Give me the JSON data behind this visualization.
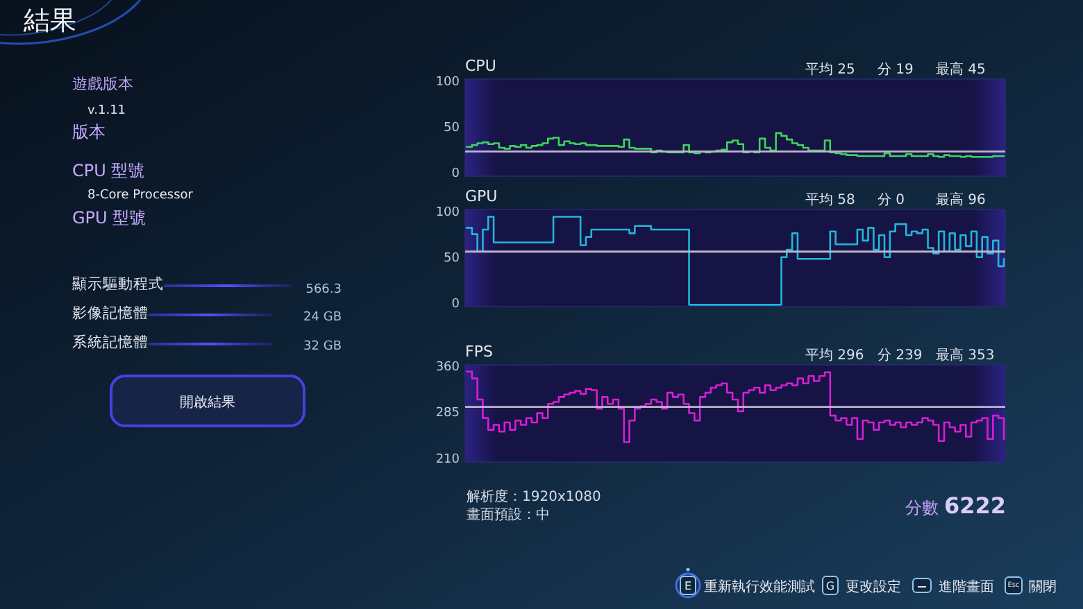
{
  "chart_data": [
    {
      "type": "other",
      "title": "結果",
      "annotations": [
        "遊戲版本",
        "v.1.11",
        "版本",
        "CPU 型號",
        "8-Core Processor",
        "GPU 型號",
        "顯示驅動程式",
        "566.3",
        "影像記憶體",
        "24 GB",
        "系統記憶體",
        "32 GB",
        "開啟結果"
      ]
    },
    {
      "type": "step",
      "title": "CPU",
      "annotations": [
        "平均 25",
        "分 19",
        "最高 45"
      ],
      "tick_labels": "y",
      "categories": [
        null,
        null,
        null,
        null,
        null,
        null,
        null,
        null,
        null,
        null,
        null,
        null,
        null,
        null,
        null,
        null,
        null,
        null,
        null,
        null,
        null,
        null,
        null,
        null,
        null,
        null,
        null,
        null,
        null,
        null,
        null,
        null,
        null,
        null,
        null,
        null,
        null,
        null,
        null,
        null,
        null,
        null,
        null,
        null,
        null,
        null,
        null,
        null,
        null,
        null,
        null,
        null,
        null,
        null,
        null,
        null,
        null,
        null,
        null,
        null,
        null,
        null,
        null,
        null,
        null,
        null,
        null,
        null,
        null,
        null,
        null,
        null,
        null,
        null,
        null,
        null,
        null,
        null,
        null,
        null,
        null,
        null,
        null,
        null,
        null,
        null,
        null,
        null,
        null,
        null,
        null,
        null,
        null,
        null,
        null,
        null,
        null,
        null,
        null,
        null
      ],
      "series": [
        {
          "color": "#3bd65a",
          "values": [
            30,
            32,
            34,
            35,
            33,
            34,
            29,
            28,
            31,
            30,
            32,
            29,
            31,
            32,
            34,
            39,
            40,
            32,
            36,
            34,
            33,
            34,
            32,
            32,
            31,
            31,
            31,
            31,
            30,
            38,
            29,
            28,
            28,
            28,
            24,
            26,
            25,
            24,
            24,
            24,
            32,
            24,
            23,
            25,
            24,
            25,
            26,
            27,
            35,
            37,
            33,
            24,
            25,
            24,
            39,
            29,
            26,
            45,
            42,
            38,
            34,
            32,
            29,
            26,
            26,
            26,
            37,
            24,
            23,
            22,
            21,
            21,
            20,
            20,
            20,
            20,
            20,
            23,
            20,
            20,
            20,
            22,
            20,
            20,
            20,
            22,
            20,
            19,
            21,
            20,
            20,
            19,
            20,
            19,
            19,
            19,
            19,
            20,
            20,
            20
          ]
        }
      ],
      "ylim": [
        -2,
        104
      ],
      "yticks": [
        0,
        50,
        100
      ],
      "ref_lines": [
        {
          "axis": "y",
          "value": 25,
          "color": "#bcb5cc"
        }
      ]
    },
    {
      "type": "step",
      "title": "GPU",
      "annotations": [
        "平均 58",
        "分 0",
        "最高 96"
      ],
      "tick_labels": "y",
      "categories": [
        null,
        null,
        null,
        null,
        null,
        null,
        null,
        null,
        null,
        null,
        null,
        null,
        null,
        null,
        null,
        null,
        null,
        null,
        null,
        null,
        null,
        null,
        null,
        null,
        null,
        null,
        null,
        null,
        null,
        null,
        null,
        null,
        null,
        null,
        null,
        null,
        null,
        null,
        null,
        null,
        null,
        null,
        null,
        null,
        null,
        null,
        null,
        null,
        null,
        null,
        null,
        null,
        null,
        null,
        null,
        null,
        null,
        null,
        null,
        null,
        null,
        null,
        null,
        null,
        null,
        null,
        null,
        null,
        null,
        null,
        null,
        null,
        null,
        null,
        null,
        null,
        null,
        null,
        null,
        null,
        null,
        null,
        null,
        null,
        null,
        null,
        null,
        null,
        null,
        null,
        null,
        null,
        null,
        null,
        null,
        null,
        null,
        null,
        null,
        null
      ],
      "series": [
        {
          "color": "#22b7d8",
          "values": [
            84,
            77,
            58,
            82,
            96,
            68,
            68,
            68,
            68,
            68,
            68,
            68,
            68,
            68,
            68,
            68,
            96,
            96,
            96,
            96,
            96,
            65,
            74,
            82,
            82,
            82,
            82,
            82,
            82,
            82,
            78,
            86,
            86,
            86,
            82,
            82,
            82,
            82,
            82,
            82,
            82,
            0,
            0,
            0,
            0,
            0,
            0,
            0,
            0,
            0,
            0,
            0,
            0,
            0,
            0,
            0,
            0,
            0,
            52,
            60,
            78,
            50,
            50,
            50,
            50,
            50,
            50,
            80,
            66,
            66,
            66,
            66,
            82,
            70,
            84,
            60,
            76,
            52,
            80,
            88,
            88,
            76,
            80,
            78,
            82,
            62,
            56,
            80,
            58,
            78,
            60,
            76,
            64,
            80,
            52,
            74,
            56,
            70,
            42,
            50
          ]
        }
      ],
      "ylim": [
        -2,
        104
      ],
      "yticks": [
        0,
        50,
        100
      ],
      "ref_lines": [
        {
          "axis": "y",
          "value": 58,
          "color": "#bcb5cc"
        }
      ]
    },
    {
      "type": "step",
      "title": "FPS",
      "annotations": [
        "平均 296",
        "分 239",
        "最高 353"
      ],
      "tick_labels": "y",
      "categories": [
        null,
        null,
        null,
        null,
        null,
        null,
        null,
        null,
        null,
        null,
        null,
        null,
        null,
        null,
        null,
        null,
        null,
        null,
        null,
        null,
        null,
        null,
        null,
        null,
        null,
        null,
        null,
        null,
        null,
        null,
        null,
        null,
        null,
        null,
        null,
        null,
        null,
        null,
        null,
        null,
        null,
        null,
        null,
        null,
        null,
        null,
        null,
        null,
        null,
        null,
        null,
        null,
        null,
        null,
        null,
        null,
        null,
        null,
        null,
        null,
        null,
        null,
        null,
        null,
        null,
        null,
        null,
        null,
        null,
        null,
        null,
        null,
        null,
        null,
        null,
        null,
        null,
        null,
        null,
        null,
        null,
        null,
        null,
        null,
        null,
        null,
        null,
        null,
        null,
        null,
        null,
        null,
        null,
        null,
        null,
        null,
        null,
        null,
        null,
        null
      ],
      "series": [
        {
          "color": "#d61fd6",
          "values": [
            353,
            342,
            308,
            278,
            259,
            267,
            256,
            271,
            259,
            274,
            267,
            278,
            271,
            286,
            278,
            301,
            304,
            312,
            316,
            319,
            322,
            317,
            325,
            323,
            293,
            312,
            301,
            308,
            293,
            239,
            274,
            293,
            297,
            301,
            308,
            304,
            293,
            319,
            312,
            316,
            301,
            286,
            274,
            312,
            319,
            327,
            331,
            334,
            319,
            308,
            289,
            319,
            323,
            327,
            319,
            331,
            323,
            327,
            331,
            334,
            331,
            342,
            334,
            346,
            338,
            346,
            352,
            282,
            274,
            278,
            267,
            278,
            244,
            274,
            271,
            259,
            271,
            274,
            267,
            271,
            263,
            271,
            267,
            271,
            278,
            274,
            267,
            241,
            271,
            263,
            256,
            267,
            248,
            271,
            274,
            278,
            244,
            282,
            278,
            244
          ]
        }
      ],
      "ylim": [
        207,
        364
      ],
      "yticks": [
        210,
        285,
        360
      ],
      "ref_lines": [
        {
          "axis": "y",
          "value": 296,
          "color": "#bcb5cc"
        }
      ]
    },
    {
      "type": "other",
      "annotations": [
        "解析度：1920x1080",
        "畫面預設：中",
        "分數",
        "6222",
        "E",
        "重新執行效能測試",
        "G",
        "更改設定",
        "進階畫面",
        "Esc",
        "關閉"
      ]
    }
  ]
}
